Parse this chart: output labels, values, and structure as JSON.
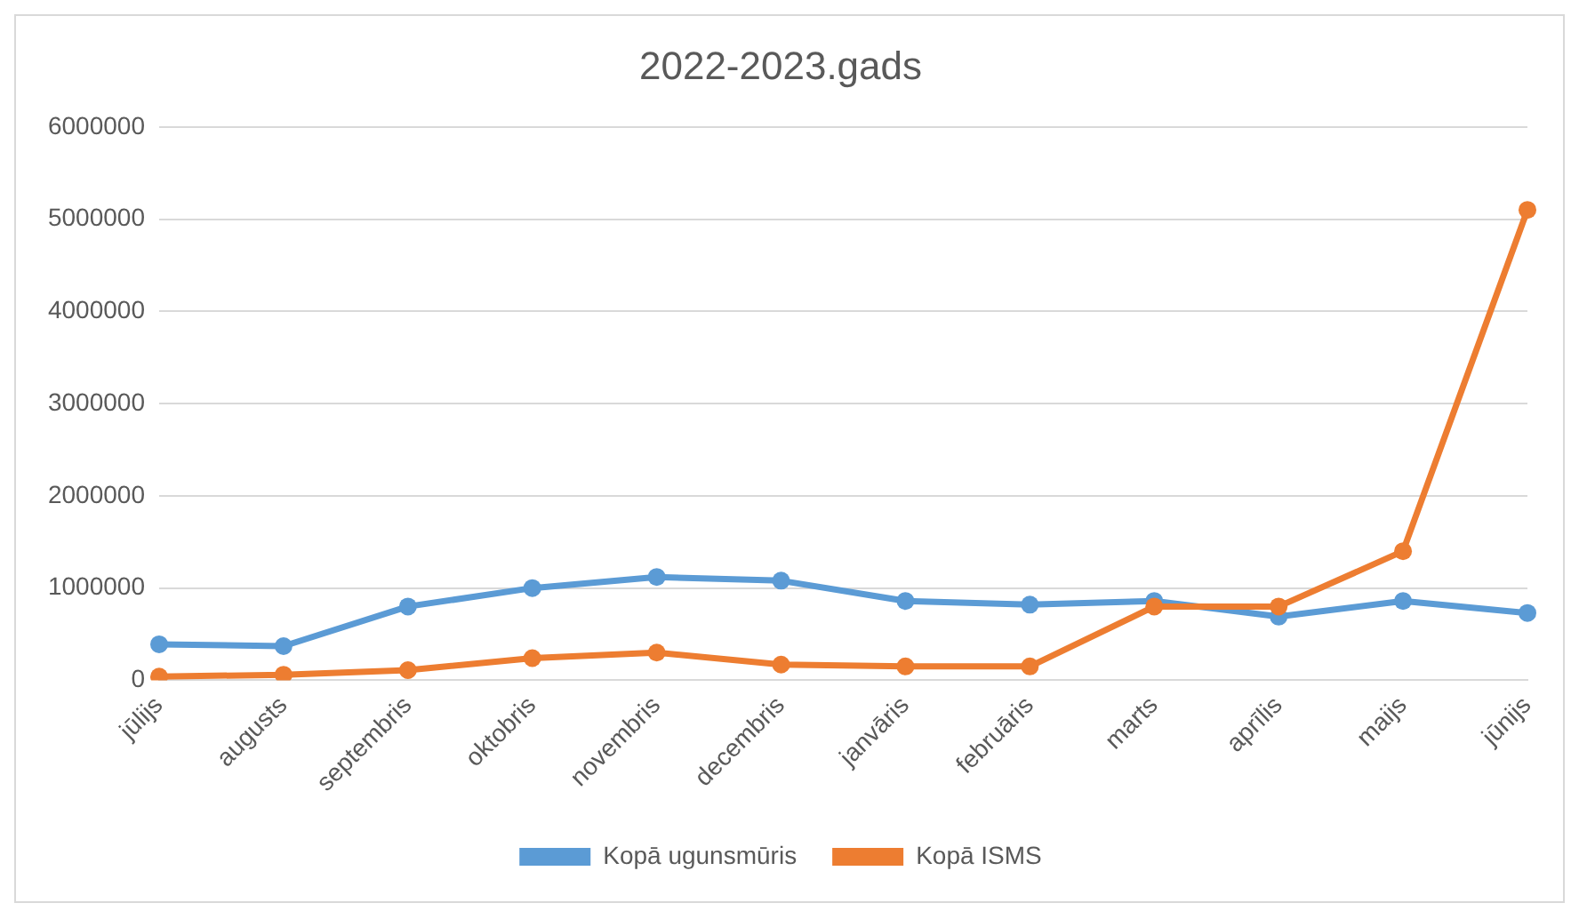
{
  "chart_data": {
    "type": "line",
    "title": "2022-2023.gads",
    "categories": [
      "jūlijs",
      "augusts",
      "septembris",
      "oktobris",
      "novembris",
      "decembris",
      "janvāris",
      "februāris",
      "marts",
      "aprīlis",
      "maijs",
      "jūnijs"
    ],
    "series": [
      {
        "name": "Kopā ugunsmūris",
        "color": "#5b9bd5",
        "values": [
          390000,
          370000,
          800000,
          1000000,
          1120000,
          1080000,
          860000,
          820000,
          860000,
          690000,
          860000,
          730000
        ]
      },
      {
        "name": "Kopā ISMS",
        "color": "#ed7d31",
        "values": [
          40000,
          60000,
          110000,
          240000,
          300000,
          170000,
          150000,
          150000,
          800000,
          800000,
          1400000,
          5100000
        ]
      }
    ],
    "ylim": [
      0,
      6000000
    ],
    "yticks": [
      0,
      1000000,
      2000000,
      3000000,
      4000000,
      5000000,
      6000000
    ],
    "grid": "y",
    "legend": "bottom",
    "marker": "circle",
    "line_style": "solid"
  }
}
